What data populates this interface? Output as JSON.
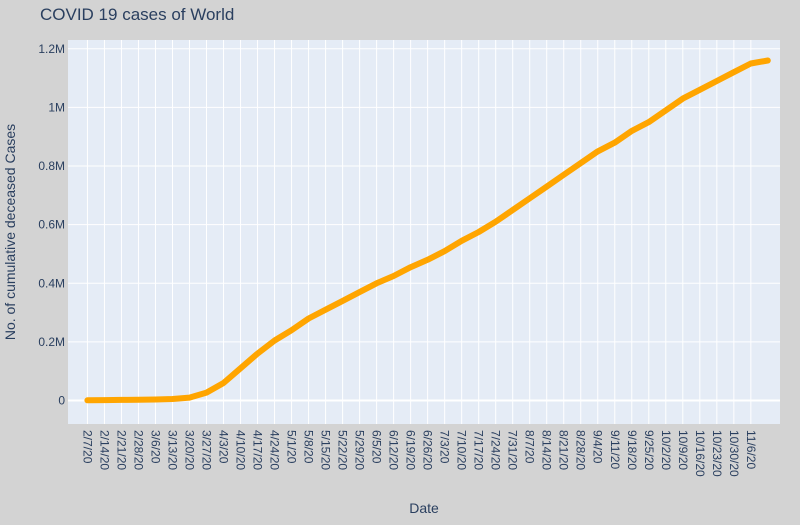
{
  "chart_data": {
    "type": "line",
    "title": "COVID 19 cases of World",
    "xlabel": "Date",
    "ylabel": "No. of cumulative deceased Cases",
    "x_tick_labels": [
      "2/7/20",
      "2/14/20",
      "2/21/20",
      "2/28/20",
      "3/6/20",
      "3/13/20",
      "3/20/20",
      "3/27/20",
      "4/3/20",
      "4/10/20",
      "4/17/20",
      "4/24/20",
      "5/1/20",
      "5/8/20",
      "5/15/20",
      "5/22/20",
      "5/29/20",
      "6/5/20",
      "6/12/20",
      "6/19/20",
      "6/26/20",
      "7/3/20",
      "7/10/20",
      "7/17/20",
      "7/24/20",
      "7/31/20",
      "8/7/20",
      "8/14/20",
      "8/21/20",
      "8/28/20",
      "9/4/20",
      "9/11/20",
      "9/18/20",
      "9/25/20",
      "10/2/20",
      "10/9/20",
      "10/16/20",
      "10/23/20",
      "10/30/20",
      "11/6/20"
    ],
    "y_ticks": [
      0,
      200000,
      400000,
      600000,
      800000,
      1000000,
      1200000
    ],
    "y_tick_labels": [
      "0",
      "0.2M",
      "0.4M",
      "0.6M",
      "0.8M",
      "1M",
      "1.2M"
    ],
    "ylim": [
      -80000,
      1230000
    ],
    "xlim": [
      "2020-01-30",
      "2020-11-18"
    ],
    "grid": true,
    "series": [
      {
        "color": "#ffa500",
        "x": [
          "2020-02-07",
          "2020-02-14",
          "2020-02-21",
          "2020-02-28",
          "2020-03-06",
          "2020-03-13",
          "2020-03-20",
          "2020-03-27",
          "2020-04-03",
          "2020-04-10",
          "2020-04-17",
          "2020-04-24",
          "2020-05-01",
          "2020-05-08",
          "2020-05-15",
          "2020-05-22",
          "2020-05-29",
          "2020-06-05",
          "2020-06-12",
          "2020-06-19",
          "2020-06-26",
          "2020-07-03",
          "2020-07-10",
          "2020-07-17",
          "2020-07-24",
          "2020-07-31",
          "2020-08-07",
          "2020-08-14",
          "2020-08-21",
          "2020-08-28",
          "2020-09-04",
          "2020-09-11",
          "2020-09-18",
          "2020-09-25",
          "2020-10-02",
          "2020-10-09",
          "2020-10-16",
          "2020-10-23",
          "2020-10-30",
          "2020-11-06",
          "2020-11-13"
        ],
        "values": [
          700,
          1500,
          2300,
          2900,
          3500,
          5400,
          10000,
          27000,
          60000,
          110000,
          160000,
          205000,
          240000,
          280000,
          310000,
          340000,
          370000,
          400000,
          425000,
          455000,
          480000,
          510000,
          545000,
          575000,
          610000,
          650000,
          690000,
          730000,
          770000,
          810000,
          850000,
          880000,
          920000,
          950000,
          990000,
          1030000,
          1060000,
          1090000,
          1120000,
          1150000,
          1160000
        ]
      }
    ]
  }
}
